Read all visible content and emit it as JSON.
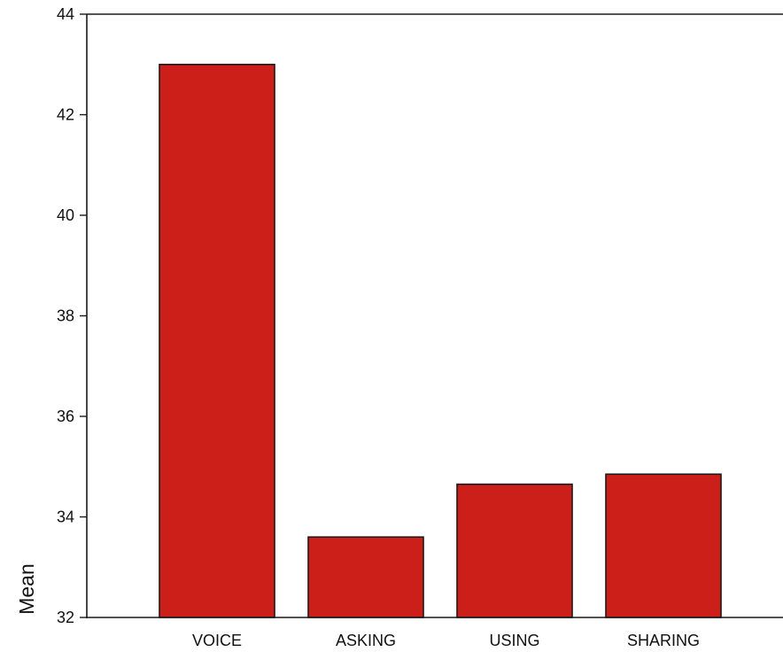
{
  "chart_data": {
    "type": "bar",
    "title": "",
    "xlabel": "",
    "ylabel": "Mean",
    "categories": [
      "VOICE",
      "ASKING",
      "USING",
      "SHARING"
    ],
    "values": [
      43.0,
      33.6,
      34.65,
      34.85
    ],
    "ylim": [
      32,
      44
    ],
    "yticks": [
      "32",
      "34",
      "36",
      "38",
      "40",
      "42",
      "44"
    ],
    "grid": false,
    "legend": "none",
    "bar_color": "#cc1f1a",
    "bar_edge_color": "#1a1a1a"
  }
}
